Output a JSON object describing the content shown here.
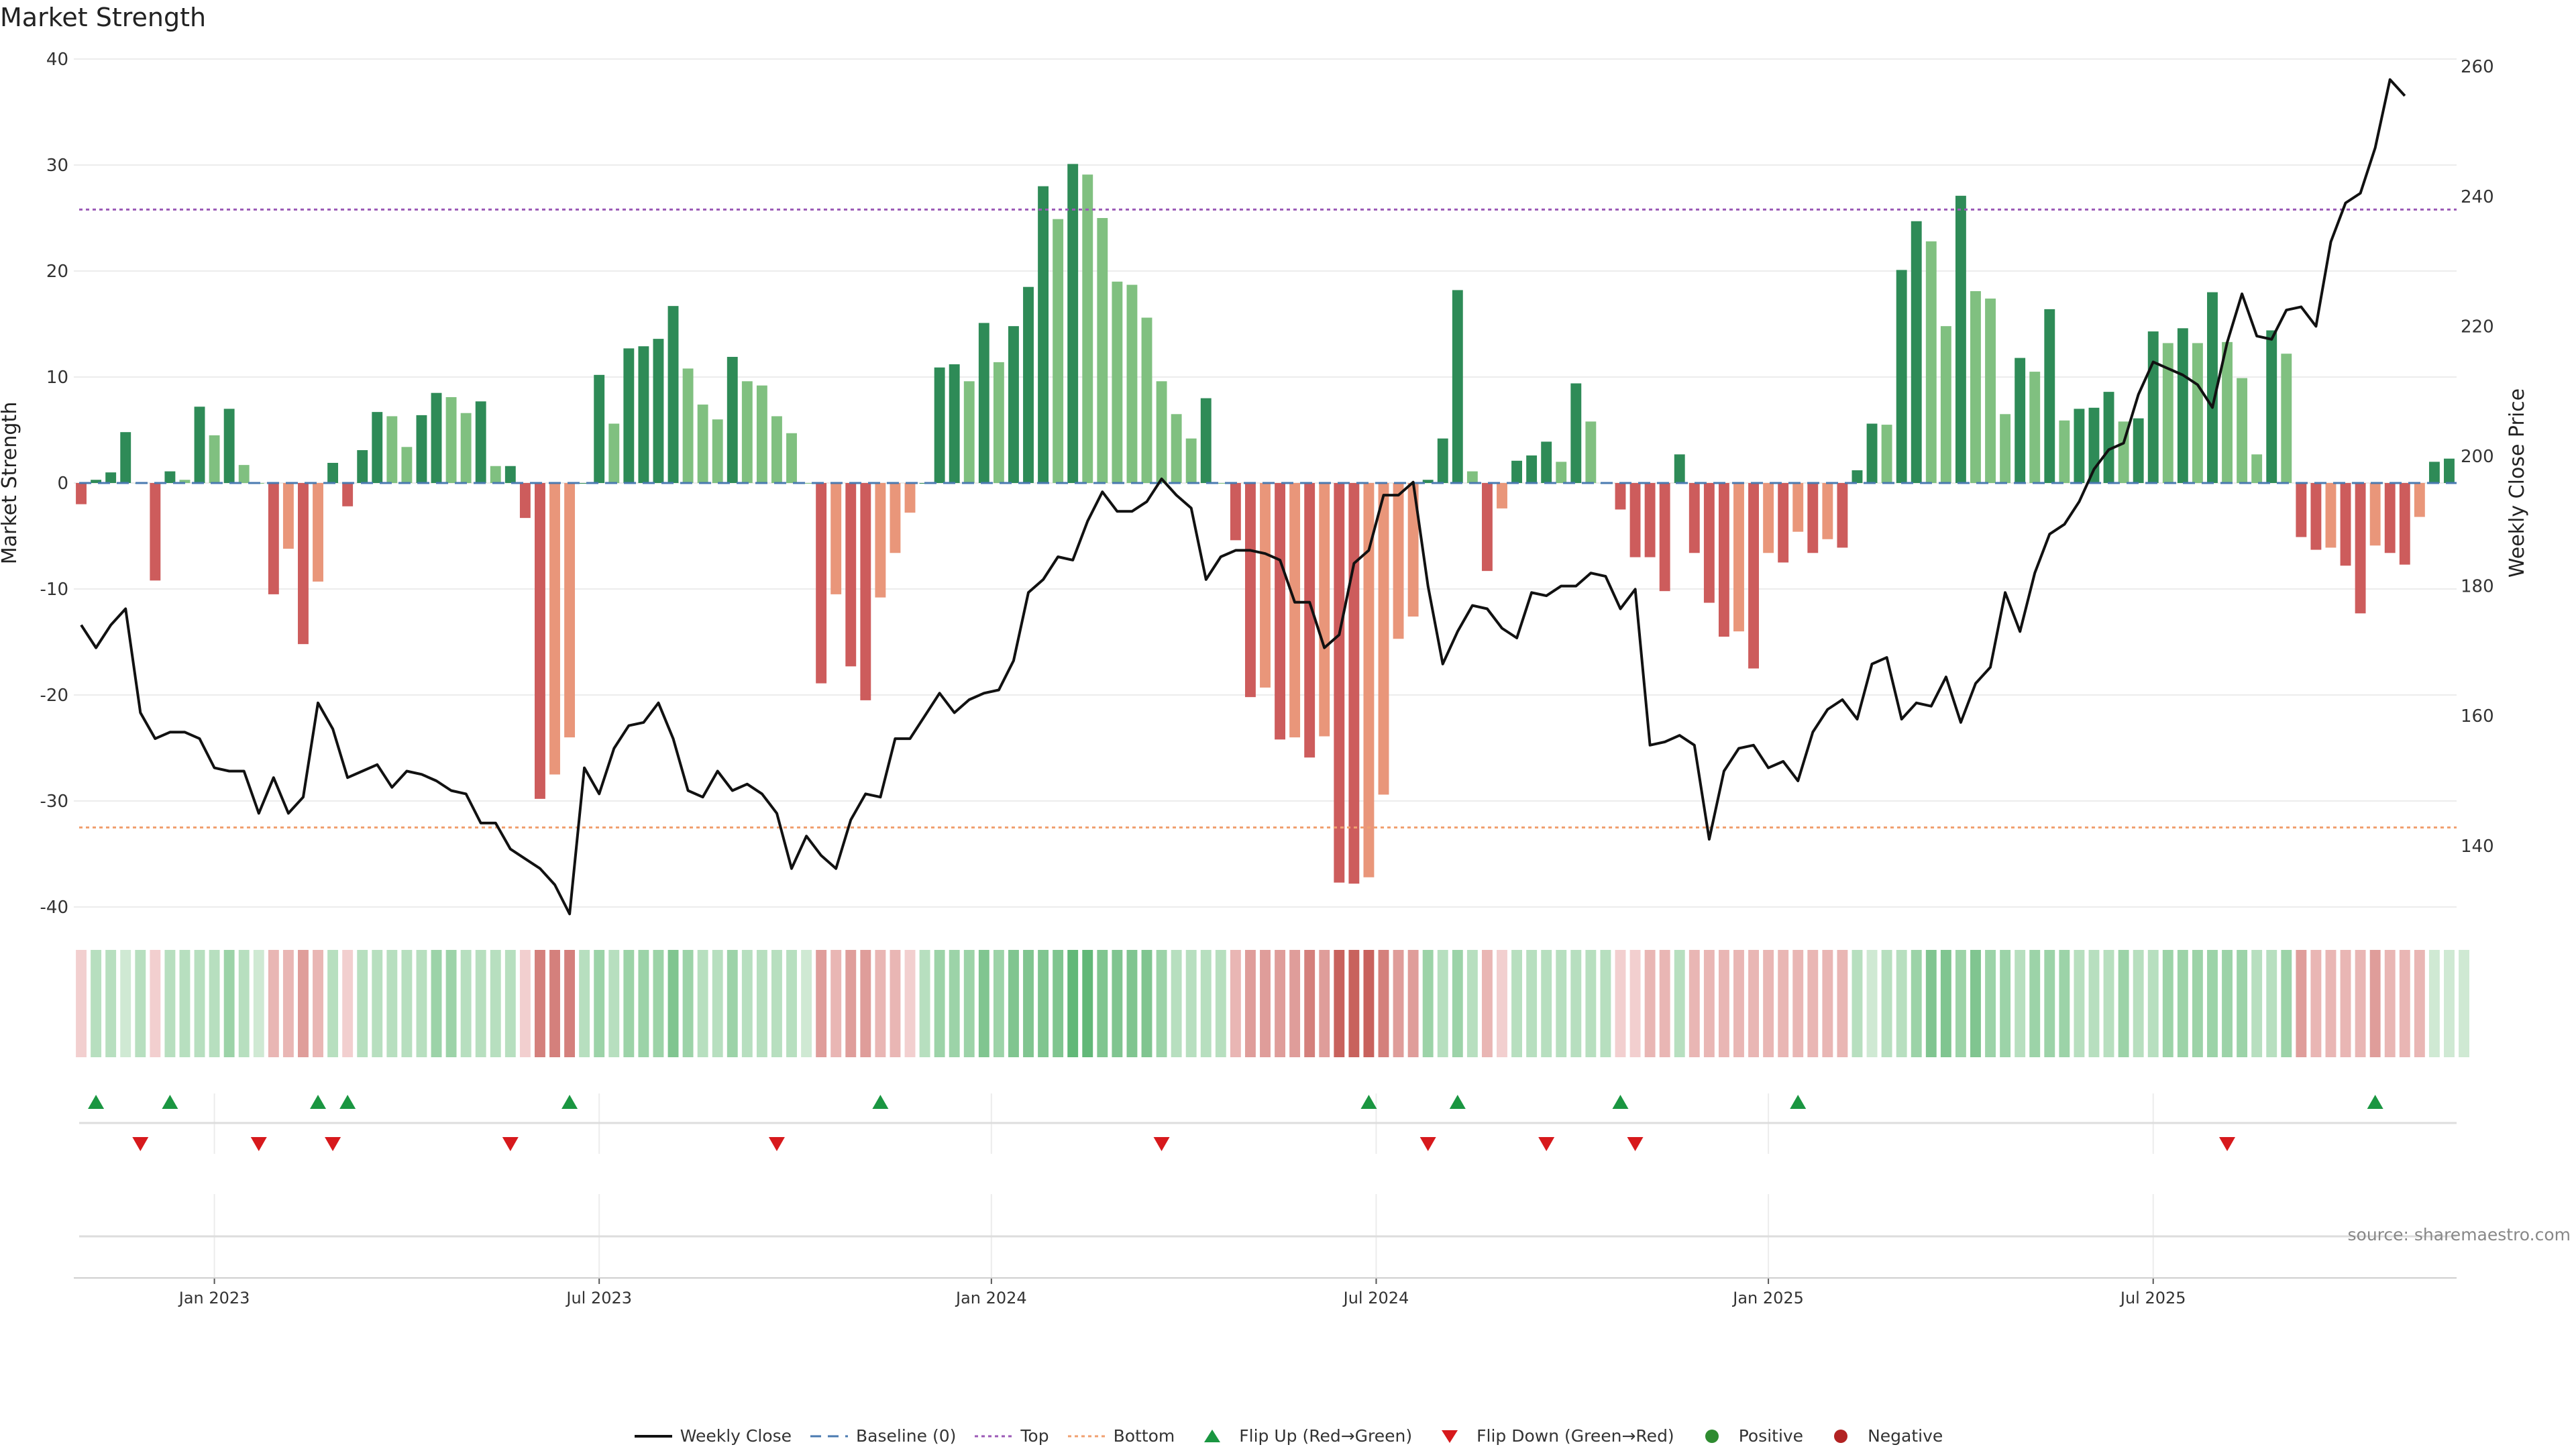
{
  "title": "Market Strength",
  "source": "source: sharemaestro.com",
  "chart_data": {
    "type": "bar",
    "left_axis": {
      "label": "Market Strength",
      "ticks": [
        40,
        30,
        20,
        10,
        0,
        -10,
        -20,
        -30,
        -40
      ],
      "range": [
        -42,
        40
      ]
    },
    "right_axis": {
      "label": "Weekly Close Price",
      "ticks": [
        260,
        240,
        220,
        200,
        180,
        160,
        140
      ],
      "range": [
        130,
        262
      ]
    },
    "x_ticks": [
      {
        "label": "Jan 2023",
        "week": 9
      },
      {
        "label": "Jul 2023",
        "week": 35
      },
      {
        "label": "Jan 2024",
        "week": 61.5
      },
      {
        "label": "Jul 2024",
        "week": 87.5
      },
      {
        "label": "Jan 2025",
        "week": 114
      },
      {
        "label": "Jul 2025",
        "week": 140
      }
    ],
    "top_level": 25.8,
    "bottom_level": -32.5,
    "strength": [
      -2,
      0.3,
      1,
      4.8,
      0,
      -9.2,
      1.1,
      0.3,
      7.2,
      4.5,
      7,
      1.7,
      0,
      -10.5,
      -6.2,
      -15.2,
      -9.3,
      1.9,
      -2.2,
      3.1,
      6.7,
      6.3,
      3.4,
      6.4,
      8.5,
      8.1,
      6.6,
      7.7,
      1.6,
      1.6,
      -3.3,
      -29.8,
      -27.5,
      -24,
      0,
      10.2,
      5.6,
      12.7,
      12.9,
      13.6,
      16.7,
      10.8,
      7.4,
      6,
      11.9,
      9.6,
      9.2,
      6.3,
      4.7,
      0,
      -18.9,
      -10.5,
      -17.3,
      -20.5,
      -10.8,
      -6.6,
      -2.8,
      0,
      10.9,
      11.2,
      9.6,
      15.1,
      11.4,
      14.8,
      18.5,
      28,
      24.9,
      30.1,
      29.1,
      25,
      19,
      18.7,
      15.6,
      9.6,
      6.5,
      4.2,
      8,
      0,
      -5.4,
      -20.2,
      -19.3,
      -24.2,
      -24,
      -25.9,
      -23.9,
      -37.7,
      -37.8,
      -37.2,
      -29.4,
      -14.7,
      -12.6,
      0.3,
      4.2,
      18.2,
      1.1,
      -8.3,
      -2.4,
      2.1,
      2.6,
      3.9,
      2,
      9.4,
      5.8,
      0,
      -2.5,
      -7,
      -7,
      -10.2,
      2.7,
      -6.6,
      -11.3,
      -14.5,
      -14,
      -17.5,
      -6.6,
      -7.5,
      -4.6,
      -6.6,
      -5.3,
      -6.1,
      1.2,
      5.6,
      5.5,
      20.1,
      24.7,
      22.8,
      14.8,
      27.1,
      18.1,
      17.4,
      6.5,
      11.8,
      10.5,
      16.4,
      5.9,
      7,
      7.1,
      8.6,
      5.8,
      6.1,
      14.3,
      13.2,
      14.6,
      13.2,
      18,
      13.3,
      9.9,
      2.7,
      14.4,
      12.2,
      -5.1,
      -6.3,
      -6.1,
      -7.8,
      -12.3,
      -5.9,
      -6.6,
      -7.7,
      -3.2,
      2,
      2.3
    ],
    "weekly_close": [
      174,
      170.5,
      174,
      176.5,
      160.5,
      156.5,
      157.5,
      157.5,
      156.5,
      152,
      151.5,
      151.5,
      145,
      150.5,
      145,
      147.5,
      162,
      158,
      150.5,
      151.5,
      152.5,
      149,
      151.5,
      151,
      150,
      148.5,
      148,
      143.5,
      143.5,
      139.5,
      138,
      136.5,
      134,
      129.5,
      152,
      148,
      155,
      158.5,
      159,
      162,
      156.5,
      148.5,
      147.5,
      151.5,
      148.5,
      149.5,
      148,
      145,
      136.5,
      141.5,
      138.5,
      136.5,
      144,
      148,
      147.5,
      156.5,
      156.5,
      160,
      163.5,
      160.5,
      162.5,
      163.5,
      164,
      168.5,
      179,
      181,
      184.5,
      184,
      190,
      194.5,
      191.5,
      191.5,
      193,
      196.5,
      194,
      192,
      181,
      184.5,
      185.5,
      185.5,
      185,
      184,
      177.5,
      177.5,
      170.5,
      172.5,
      183.5,
      185.5,
      194,
      194,
      196,
      180,
      168,
      173,
      177,
      176.5,
      173.5,
      172,
      179,
      178.5,
      180,
      180,
      182,
      181.5,
      176.5,
      179.5,
      155.5,
      156,
      157,
      155.5,
      141,
      151.5,
      155,
      155.5,
      152,
      153,
      150,
      157.5,
      161,
      162.5,
      159.5,
      168,
      169,
      159.5,
      162,
      161.5,
      166,
      159,
      165,
      167.5,
      179,
      173,
      182,
      188,
      189.5,
      193,
      198,
      201,
      202,
      209.5,
      214.5,
      213.5,
      212.5,
      211,
      207.5,
      217.5,
      225,
      218.5,
      218,
      222.5,
      223,
      220,
      233,
      239,
      240.5,
      247.5,
      258,
      255.5
    ],
    "heatmap": [
      1,
      2,
      2,
      1,
      2,
      1,
      2,
      2,
      2,
      2,
      3,
      2,
      1,
      2,
      2,
      3,
      2,
      2,
      1,
      2,
      2,
      2,
      2,
      2,
      3,
      3,
      2,
      2,
      2,
      2,
      1,
      4,
      4,
      4,
      2,
      3,
      2,
      3,
      3,
      3,
      4,
      3,
      2,
      2,
      3,
      2,
      2,
      2,
      2,
      1,
      3,
      2,
      3,
      3,
      2,
      2,
      1,
      2,
      3,
      3,
      3,
      4,
      3,
      4,
      4,
      4,
      4,
      5,
      5,
      4,
      4,
      4,
      4,
      3,
      2,
      2,
      2,
      2,
      2,
      3,
      3,
      3,
      3,
      4,
      3,
      5,
      5,
      5,
      4,
      3,
      3,
      3,
      2,
      3,
      2,
      2,
      1,
      2,
      2,
      2,
      2,
      2,
      2,
      2,
      1,
      1,
      2,
      2,
      2,
      2,
      2,
      2,
      2,
      2,
      2,
      2,
      2,
      2,
      2,
      2,
      2,
      1,
      2,
      2,
      3,
      4,
      4,
      3,
      4,
      3,
      3,
      2,
      3,
      3,
      3,
      2,
      2,
      2,
      3,
      2,
      2,
      3,
      3,
      3,
      3,
      3,
      3,
      2,
      2,
      3,
      3,
      2,
      2,
      2,
      2,
      3,
      2,
      2,
      2,
      1,
      1,
      1
    ],
    "flip_up_weeks": [
      1,
      6,
      16,
      18,
      33,
      54,
      87,
      93,
      104,
      116,
      155
    ],
    "flip_down_weeks": [
      4,
      12,
      17,
      29,
      47,
      73,
      91,
      99,
      105,
      145
    ],
    "legend": [
      {
        "label": "Weekly Close",
        "kind": "line"
      },
      {
        "label": "Baseline (0)",
        "kind": "dash"
      },
      {
        "label": "Top",
        "kind": "dot-purple"
      },
      {
        "label": "Bottom",
        "kind": "dot-orange"
      },
      {
        "label": "Flip Up (Red→Green)",
        "kind": "tri-up"
      },
      {
        "label": "Flip Down (Green→Red)",
        "kind": "tri-down"
      },
      {
        "label": "Positive",
        "kind": "dot-green"
      },
      {
        "label": "Negative",
        "kind": "dot-red"
      }
    ],
    "colors": {
      "pos_dark": "#2e8b57",
      "pos_light": "#80c080",
      "neg_dark": "#cd5c5c",
      "neg_light": "#e9967a",
      "line": "#111111",
      "baseline": "#4a7ab0",
      "top": "#9b59b6",
      "bottom": "#f0a070",
      "flip_up": "#1a9641",
      "flip_down": "#d7191c",
      "positive_dot": "#2e8b30",
      "negative_dot": "#b22222"
    }
  }
}
